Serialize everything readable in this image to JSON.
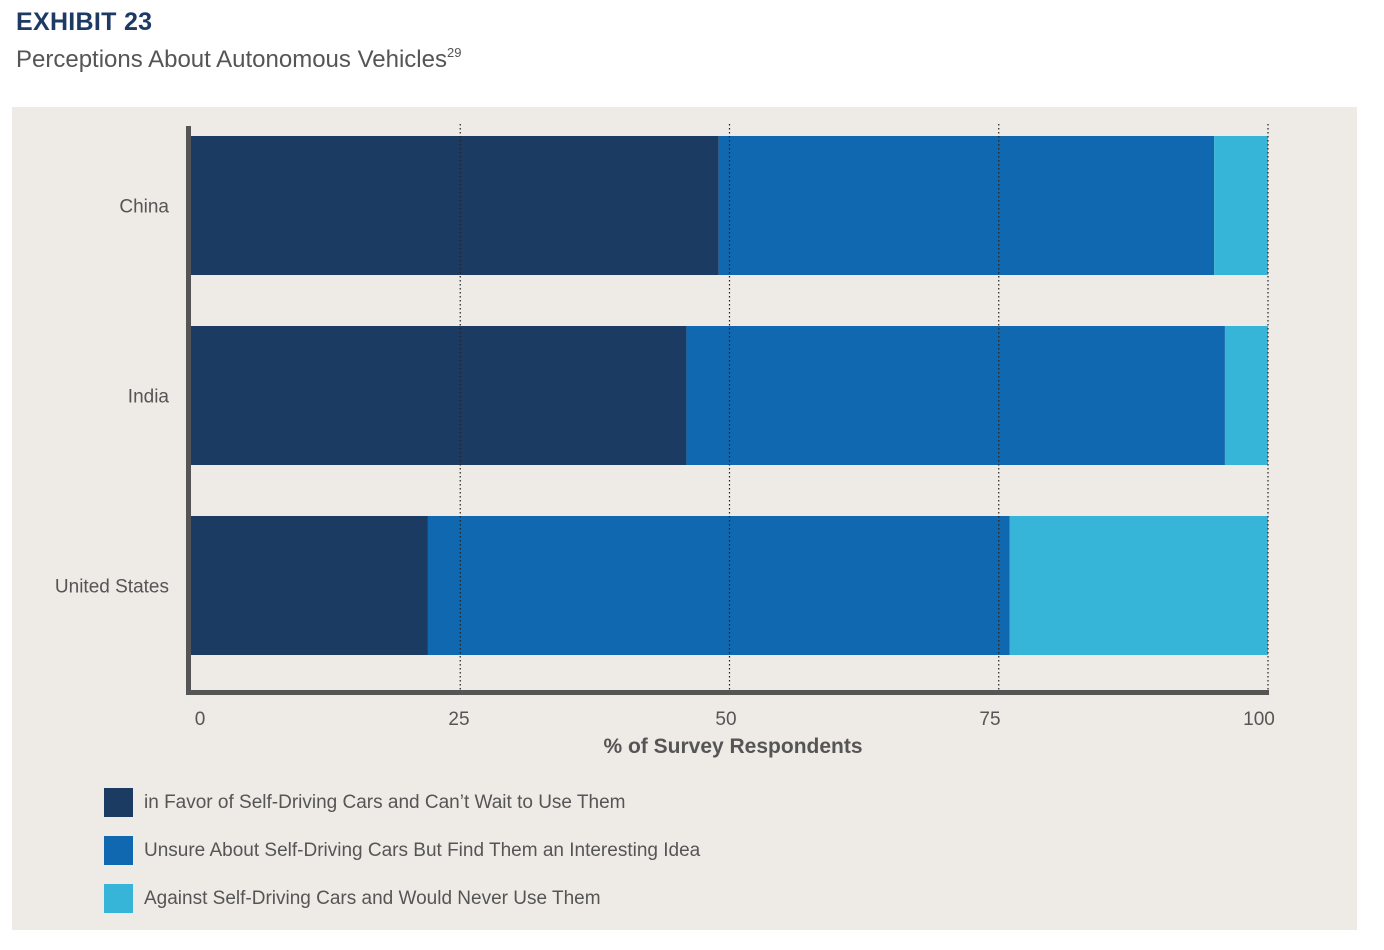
{
  "header": {
    "exhibit_label": "EXHIBIT 23",
    "subtitle": "Perceptions About Autonomous Vehicles",
    "footnote": "29"
  },
  "colors": {
    "favor": "#1c3b63",
    "unsure": "#0f68b0",
    "against": "#37b5d9",
    "panel": "#eeebe6",
    "axis": "#555555"
  },
  "chart_data": {
    "type": "bar",
    "orientation": "horizontal",
    "stacked": true,
    "categories": [
      "China",
      "India",
      "United States"
    ],
    "series": [
      {
        "name": "in Favor of Self-Driving Cars and Can’t Wait to Use Them",
        "values": [
          49,
          46,
          22
        ]
      },
      {
        "name": "Unsure About Self-Driving Cars But Find Them an Interesting Idea",
        "values": [
          46,
          50,
          54
        ]
      },
      {
        "name": "Against Self-Driving Cars and Would Never Use Them",
        "values": [
          5,
          4,
          24
        ]
      }
    ],
    "xlabel": "% of Survey Respondents",
    "ylabel": "",
    "xlim": [
      0,
      100
    ],
    "xticks": [
      "0",
      "25",
      "50",
      "75",
      "100"
    ],
    "grid": "vertical dotted",
    "legend_position": "bottom-left"
  }
}
